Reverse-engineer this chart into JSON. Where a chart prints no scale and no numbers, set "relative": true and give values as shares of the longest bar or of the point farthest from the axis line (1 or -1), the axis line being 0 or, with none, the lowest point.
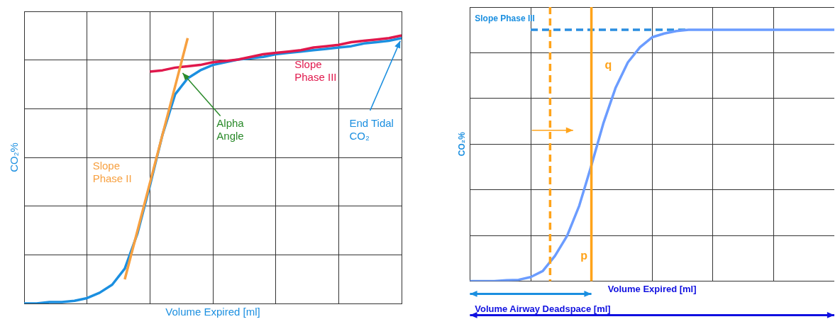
{
  "chart_data": [
    {
      "type": "line",
      "relative": true,
      "xlabel": "Volume Expired [ml]",
      "ylabel": "CO₂%",
      "grid": true,
      "marker": "none",
      "categories": [
        null,
        null,
        null,
        null,
        null,
        null,
        null,
        null,
        null,
        null,
        null,
        null,
        null,
        null,
        null,
        null,
        null,
        null,
        null,
        null,
        null,
        null,
        null,
        null,
        null,
        null,
        null,
        null,
        null,
        null,
        null
      ],
      "series": [
        {
          "color": "#f7a040",
          "values": [
            null,
            null,
            null,
            null,
            null,
            null,
            null,
            null,
            0.09,
            0.27,
            0.45,
            0.63,
            0.81,
            0.99,
            null,
            null,
            null,
            null,
            null,
            null,
            null,
            null,
            null,
            null,
            null,
            null,
            null,
            null,
            null,
            null,
            null
          ]
        },
        {
          "color": "#e0184c",
          "values": [
            null,
            null,
            null,
            null,
            null,
            null,
            null,
            null,
            null,
            null,
            0.865,
            0.87,
            0.88,
            0.885,
            0.89,
            0.9,
            0.905,
            0.91,
            0.92,
            0.93,
            0.935,
            0.94,
            0.945,
            0.955,
            0.96,
            0.965,
            0.975,
            0.98,
            0.985,
            0.99,
            1
          ]
        },
        {
          "color": "#1b8fe0",
          "values": [
            0,
            0,
            0.005,
            0.005,
            0.01,
            0.02,
            0.04,
            0.07,
            0.13,
            0.26,
            0.44,
            0.63,
            0.78,
            0.84,
            0.87,
            0.89,
            0.9,
            0.91,
            0.915,
            0.92,
            0.93,
            0.935,
            0.94,
            0.945,
            0.95,
            0.955,
            0.96,
            0.97,
            0.975,
            0.98,
            0.99
          ]
        }
      ],
      "annotations": [
        "Slope Phase II",
        "Alpha Angle",
        "Slope Phase III",
        "End Tidal CO₂"
      ]
    },
    {
      "type": "line",
      "relative": true,
      "xlabel": "Volume Expired [ml]",
      "ylabel": "CO₂%",
      "grid": true,
      "marker": "none",
      "categories": [
        null,
        null,
        null,
        null,
        null,
        null,
        null,
        null,
        null,
        null,
        null,
        null,
        null,
        null,
        null,
        null,
        null,
        null,
        null,
        null,
        null,
        null,
        null,
        null,
        null,
        null,
        null,
        null,
        null,
        null,
        null
      ],
      "series": [
        {
          "color": "#6b9cff",
          "values": [
            0,
            0,
            0,
            0.003,
            0.005,
            0.016,
            0.04,
            0.1,
            0.18,
            0.3,
            0.46,
            0.63,
            0.77,
            0.87,
            0.93,
            0.97,
            0.985,
            0.995,
            1,
            1,
            1,
            1,
            1,
            1,
            1,
            1,
            1,
            1,
            1,
            1,
            1
          ]
        },
        {
          "color": "#2a8ee0",
          "line_style": "dashed",
          "values": [
            null,
            null,
            null,
            null,
            null,
            1,
            1,
            1,
            1,
            1,
            1,
            1,
            1,
            1,
            1,
            1,
            1,
            1,
            1,
            null,
            null,
            null,
            null,
            null,
            null,
            null,
            null,
            null,
            null,
            null,
            null
          ]
        }
      ],
      "annotations": [
        "Slope Phase III",
        "q",
        "p",
        "Volume Airway Deadspace [ml]"
      ]
    }
  ]
}
